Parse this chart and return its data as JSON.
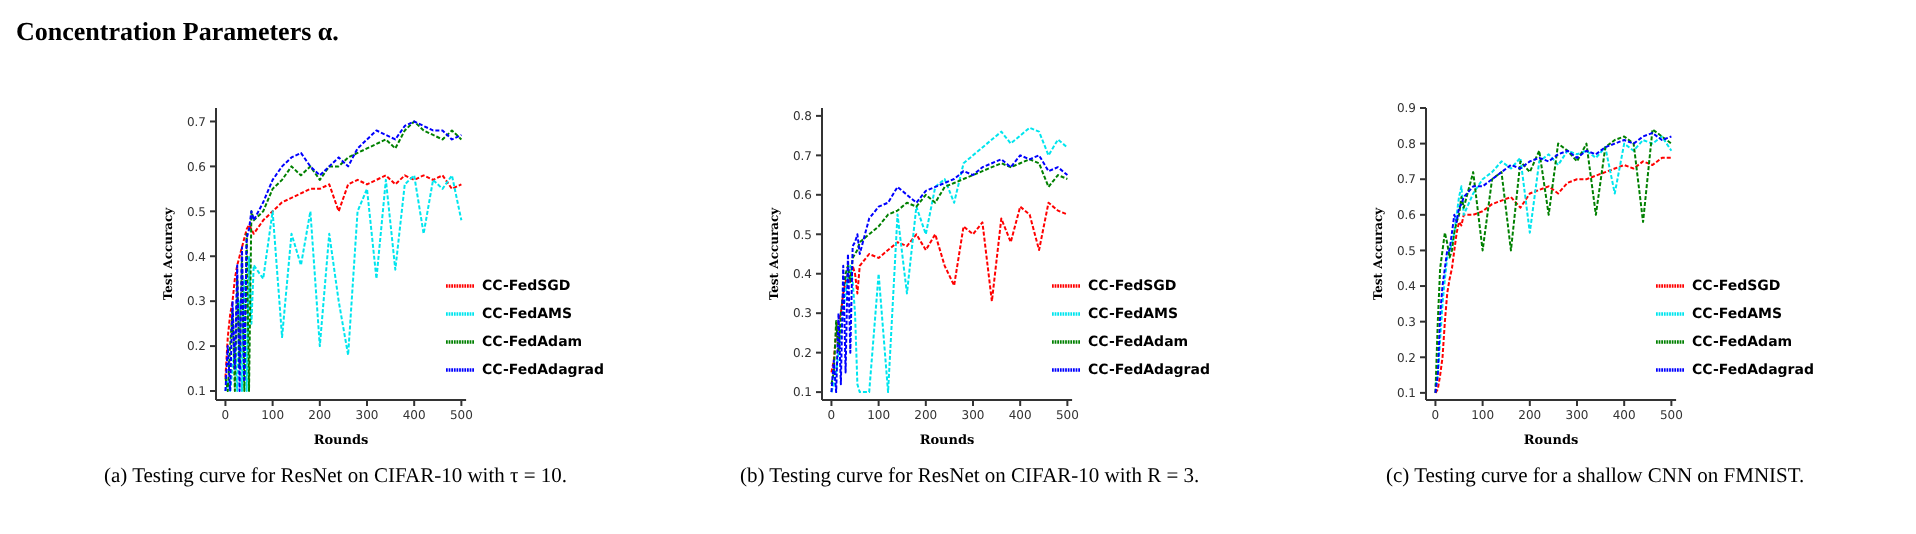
{
  "chart_data": [
    {
      "type": "line",
      "title": "Concentration Parameters α.",
      "xlabel": "Rounds",
      "ylabel": "Test Accuracy",
      "annotations": [
        "(a) Testing curve for ResNet on CIFAR-10 with τ = 10."
      ],
      "xlim": [
        -20,
        510
      ],
      "ylim": [
        0.08,
        0.73
      ],
      "xticks": [
        0,
        100,
        200,
        300,
        400,
        500
      ],
      "yticks": [
        0.1,
        0.2,
        0.3,
        0.4,
        0.5,
        0.6,
        0.7
      ],
      "grid": false,
      "legend": "bottom right",
      "marker": "none",
      "line_style": "dashed",
      "x": [
        0,
        5,
        10,
        15,
        20,
        25,
        30,
        35,
        40,
        45,
        50,
        55,
        60,
        80,
        100,
        120,
        140,
        160,
        180,
        200,
        220,
        240,
        260,
        280,
        300,
        320,
        340,
        360,
        380,
        400,
        420,
        440,
        460,
        480,
        500
      ],
      "series": [
        {
          "name": "CC-FedSGD",
          "color": "#ff0000",
          "values": [
            0.13,
            0.22,
            0.27,
            0.3,
            0.35,
            0.38,
            0.4,
            0.42,
            0.44,
            0.46,
            0.47,
            0.46,
            0.45,
            0.48,
            0.5,
            0.52,
            0.53,
            0.54,
            0.55,
            0.55,
            0.56,
            0.5,
            0.56,
            0.57,
            0.56,
            0.57,
            0.58,
            0.56,
            0.58,
            0.57,
            0.58,
            0.57,
            0.58,
            0.55,
            0.56
          ]
        },
        {
          "name": "CC-FedAMS",
          "color": "#00e5ee",
          "values": [
            0.1,
            0.12,
            0.1,
            0.15,
            0.2,
            0.1,
            0.3,
            0.1,
            0.35,
            0.1,
            0.4,
            0.25,
            0.38,
            0.35,
            0.5,
            0.22,
            0.45,
            0.38,
            0.5,
            0.2,
            0.45,
            0.3,
            0.18,
            0.5,
            0.55,
            0.35,
            0.57,
            0.37,
            0.56,
            0.58,
            0.45,
            0.57,
            0.55,
            0.58,
            0.48
          ]
        },
        {
          "name": "CC-FedAdam",
          "color": "#008000",
          "values": [
            0.13,
            0.1,
            0.2,
            0.28,
            0.1,
            0.35,
            0.15,
            0.4,
            0.1,
            0.45,
            0.1,
            0.5,
            0.48,
            0.5,
            0.55,
            0.57,
            0.6,
            0.58,
            0.6,
            0.57,
            0.6,
            0.6,
            0.62,
            0.63,
            0.64,
            0.65,
            0.66,
            0.64,
            0.68,
            0.7,
            0.68,
            0.67,
            0.66,
            0.68,
            0.66
          ]
        },
        {
          "name": "CC-FedAdagrad",
          "color": "#0000ff",
          "values": [
            0.1,
            0.2,
            0.1,
            0.3,
            0.15,
            0.38,
            0.1,
            0.42,
            0.12,
            0.44,
            0.46,
            0.5,
            0.48,
            0.52,
            0.57,
            0.6,
            0.62,
            0.63,
            0.6,
            0.58,
            0.6,
            0.62,
            0.6,
            0.64,
            0.66,
            0.68,
            0.67,
            0.66,
            0.69,
            0.7,
            0.69,
            0.68,
            0.68,
            0.66,
            0.67
          ]
        }
      ]
    },
    {
      "type": "line",
      "xlabel": "Rounds",
      "ylabel": "Test Accuracy",
      "annotations": [
        "(b) Testing curve for ResNet on CIFAR-10 with R = 3."
      ],
      "xlim": [
        -20,
        510
      ],
      "ylim": [
        0.08,
        0.82
      ],
      "xticks": [
        0,
        100,
        200,
        300,
        400,
        500
      ],
      "yticks": [
        0.1,
        0.2,
        0.3,
        0.4,
        0.5,
        0.6,
        0.7,
        0.8
      ],
      "grid": false,
      "legend": "bottom right",
      "marker": "none",
      "line_style": "dashed",
      "x": [
        0,
        5,
        10,
        15,
        20,
        25,
        30,
        35,
        40,
        45,
        50,
        55,
        60,
        80,
        100,
        120,
        140,
        160,
        180,
        200,
        220,
        240,
        260,
        280,
        300,
        320,
        340,
        360,
        380,
        400,
        420,
        440,
        460,
        480,
        500
      ],
      "series": [
        {
          "name": "CC-FedSGD",
          "color": "#ff0000",
          "values": [
            0.15,
            0.18,
            0.25,
            0.28,
            0.3,
            0.35,
            0.38,
            0.4,
            0.38,
            0.42,
            0.4,
            0.35,
            0.42,
            0.45,
            0.44,
            0.46,
            0.48,
            0.47,
            0.5,
            0.46,
            0.5,
            0.42,
            0.37,
            0.52,
            0.5,
            0.53,
            0.33,
            0.54,
            0.48,
            0.57,
            0.55,
            0.46,
            0.58,
            0.56,
            0.55
          ]
        },
        {
          "name": "CC-FedAMS",
          "color": "#00e5ee",
          "values": [
            0.1,
            0.12,
            0.15,
            0.2,
            0.25,
            0.3,
            0.35,
            0.4,
            0.42,
            0.38,
            0.3,
            0.12,
            0.1,
            0.1,
            0.4,
            0.1,
            0.55,
            0.35,
            0.57,
            0.5,
            0.62,
            0.64,
            0.58,
            0.68,
            0.7,
            0.72,
            0.74,
            0.76,
            0.73,
            0.75,
            0.77,
            0.76,
            0.7,
            0.74,
            0.72
          ]
        },
        {
          "name": "CC-FedAdam",
          "color": "#008000",
          "values": [
            0.12,
            0.15,
            0.28,
            0.2,
            0.3,
            0.35,
            0.4,
            0.42,
            0.38,
            0.44,
            0.45,
            0.46,
            0.48,
            0.5,
            0.52,
            0.55,
            0.56,
            0.58,
            0.57,
            0.6,
            0.58,
            0.62,
            0.63,
            0.64,
            0.65,
            0.66,
            0.67,
            0.68,
            0.67,
            0.68,
            0.69,
            0.68,
            0.62,
            0.65,
            0.64
          ]
        },
        {
          "name": "CC-FedAdagrad",
          "color": "#0000ff",
          "values": [
            0.1,
            0.18,
            0.1,
            0.3,
            0.12,
            0.42,
            0.15,
            0.45,
            0.2,
            0.47,
            0.48,
            0.5,
            0.45,
            0.54,
            0.57,
            0.58,
            0.62,
            0.6,
            0.58,
            0.61,
            0.62,
            0.63,
            0.64,
            0.66,
            0.65,
            0.67,
            0.68,
            0.69,
            0.67,
            0.7,
            0.69,
            0.7,
            0.66,
            0.67,
            0.65
          ]
        }
      ]
    },
    {
      "type": "line",
      "xlabel": "Rounds",
      "ylabel": "Test Accuracy",
      "annotations": [
        "(c) Testing curve for a shallow CNN on FMNIST."
      ],
      "xlim": [
        -20,
        510
      ],
      "ylim": [
        0.08,
        0.9
      ],
      "xticks": [
        0,
        100,
        200,
        300,
        400,
        500
      ],
      "yticks": [
        0.1,
        0.2,
        0.3,
        0.4,
        0.5,
        0.6,
        0.7,
        0.8,
        0.9
      ],
      "grid": false,
      "legend": "bottom right",
      "marker": "none",
      "line_style": "dashed",
      "x": [
        0,
        5,
        10,
        15,
        20,
        25,
        30,
        35,
        40,
        45,
        50,
        55,
        60,
        80,
        100,
        120,
        140,
        160,
        180,
        200,
        220,
        240,
        260,
        280,
        300,
        320,
        340,
        360,
        380,
        400,
        420,
        440,
        460,
        480,
        500
      ],
      "series": [
        {
          "name": "CC-FedSGD",
          "color": "#ff0000",
          "values": [
            0.1,
            0.11,
            0.15,
            0.2,
            0.3,
            0.38,
            0.42,
            0.45,
            0.5,
            0.55,
            0.58,
            0.57,
            0.6,
            0.6,
            0.61,
            0.63,
            0.64,
            0.65,
            0.62,
            0.66,
            0.67,
            0.68,
            0.66,
            0.69,
            0.7,
            0.7,
            0.71,
            0.72,
            0.73,
            0.74,
            0.73,
            0.75,
            0.74,
            0.76,
            0.76
          ]
        },
        {
          "name": "CC-FedAMS",
          "color": "#00e5ee",
          "values": [
            0.12,
            0.15,
            0.25,
            0.35,
            0.42,
            0.48,
            0.5,
            0.52,
            0.55,
            0.6,
            0.65,
            0.68,
            0.6,
            0.66,
            0.7,
            0.72,
            0.75,
            0.73,
            0.76,
            0.55,
            0.75,
            0.77,
            0.74,
            0.78,
            0.77,
            0.78,
            0.76,
            0.79,
            0.66,
            0.8,
            0.78,
            0.81,
            0.8,
            0.82,
            0.78
          ]
        },
        {
          "name": "CC-FedAdam",
          "color": "#008000",
          "values": [
            0.1,
            0.3,
            0.45,
            0.5,
            0.55,
            0.52,
            0.48,
            0.5,
            0.55,
            0.58,
            0.6,
            0.65,
            0.62,
            0.72,
            0.5,
            0.7,
            0.72,
            0.5,
            0.75,
            0.72,
            0.78,
            0.6,
            0.8,
            0.78,
            0.75,
            0.8,
            0.6,
            0.79,
            0.81,
            0.82,
            0.8,
            0.58,
            0.84,
            0.82,
            0.8
          ]
        },
        {
          "name": "CC-FedAdagrad",
          "color": "#0000ff",
          "values": [
            0.1,
            0.15,
            0.32,
            0.4,
            0.45,
            0.5,
            0.5,
            0.55,
            0.6,
            0.58,
            0.62,
            0.63,
            0.65,
            0.68,
            0.68,
            0.7,
            0.72,
            0.74,
            0.73,
            0.75,
            0.76,
            0.75,
            0.77,
            0.78,
            0.76,
            0.78,
            0.77,
            0.79,
            0.8,
            0.81,
            0.8,
            0.82,
            0.83,
            0.81,
            0.82
          ]
        }
      ]
    }
  ]
}
